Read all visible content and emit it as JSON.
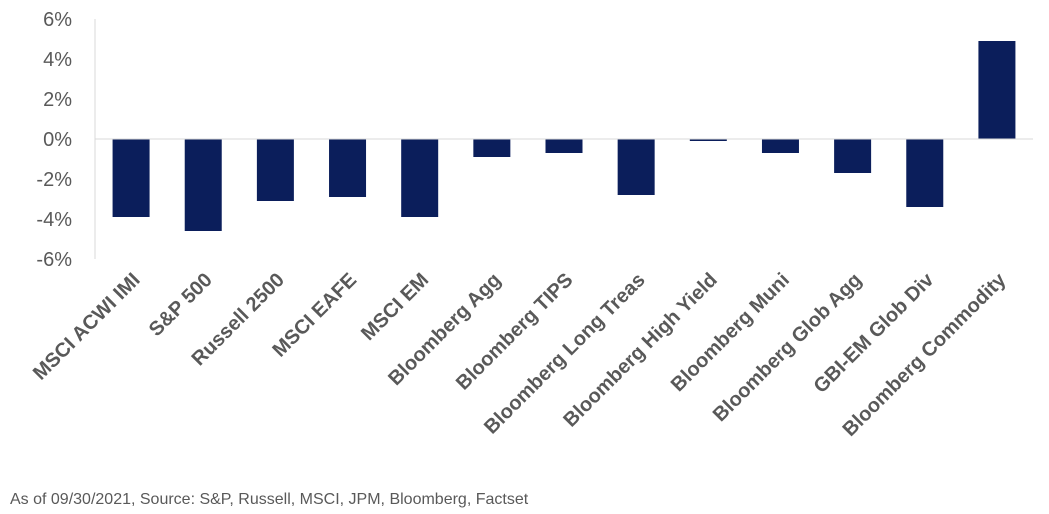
{
  "chart_data": {
    "type": "bar",
    "title": "",
    "xlabel": "",
    "ylabel": "",
    "categories": [
      "MSCI ACWI IMI",
      "S&P 500",
      "Russell 2500",
      "MSCI EAFE",
      "MSCI EM",
      "Bloomberg Agg",
      "Bloomberg TIPS",
      "Bloomberg Long Treas",
      "Bloomberg High Yield",
      "Bloomberg Muni",
      "Bloomberg Glob Agg",
      "GBI-EM Glob Div",
      "Bloomberg Commodity"
    ],
    "values": [
      -3.9,
      -4.6,
      -3.1,
      -2.9,
      -3.9,
      -0.9,
      -0.7,
      -2.8,
      -0.1,
      -0.7,
      -1.7,
      -3.4,
      4.9
    ],
    "ylim": [
      -6,
      6
    ],
    "yticks": [
      6,
      4,
      2,
      0,
      -2,
      -4,
      -6
    ],
    "ytick_labels": [
      "6%",
      "4%",
      "2%",
      "0%",
      "-2%",
      "-4%",
      "-6%"
    ],
    "bar_color": "#0B1E5B",
    "grid": false,
    "legend": "none"
  },
  "source_note": "As of 09/30/2021, Source: S&P, Russell, MSCI, JPM, Bloomberg, Factset"
}
